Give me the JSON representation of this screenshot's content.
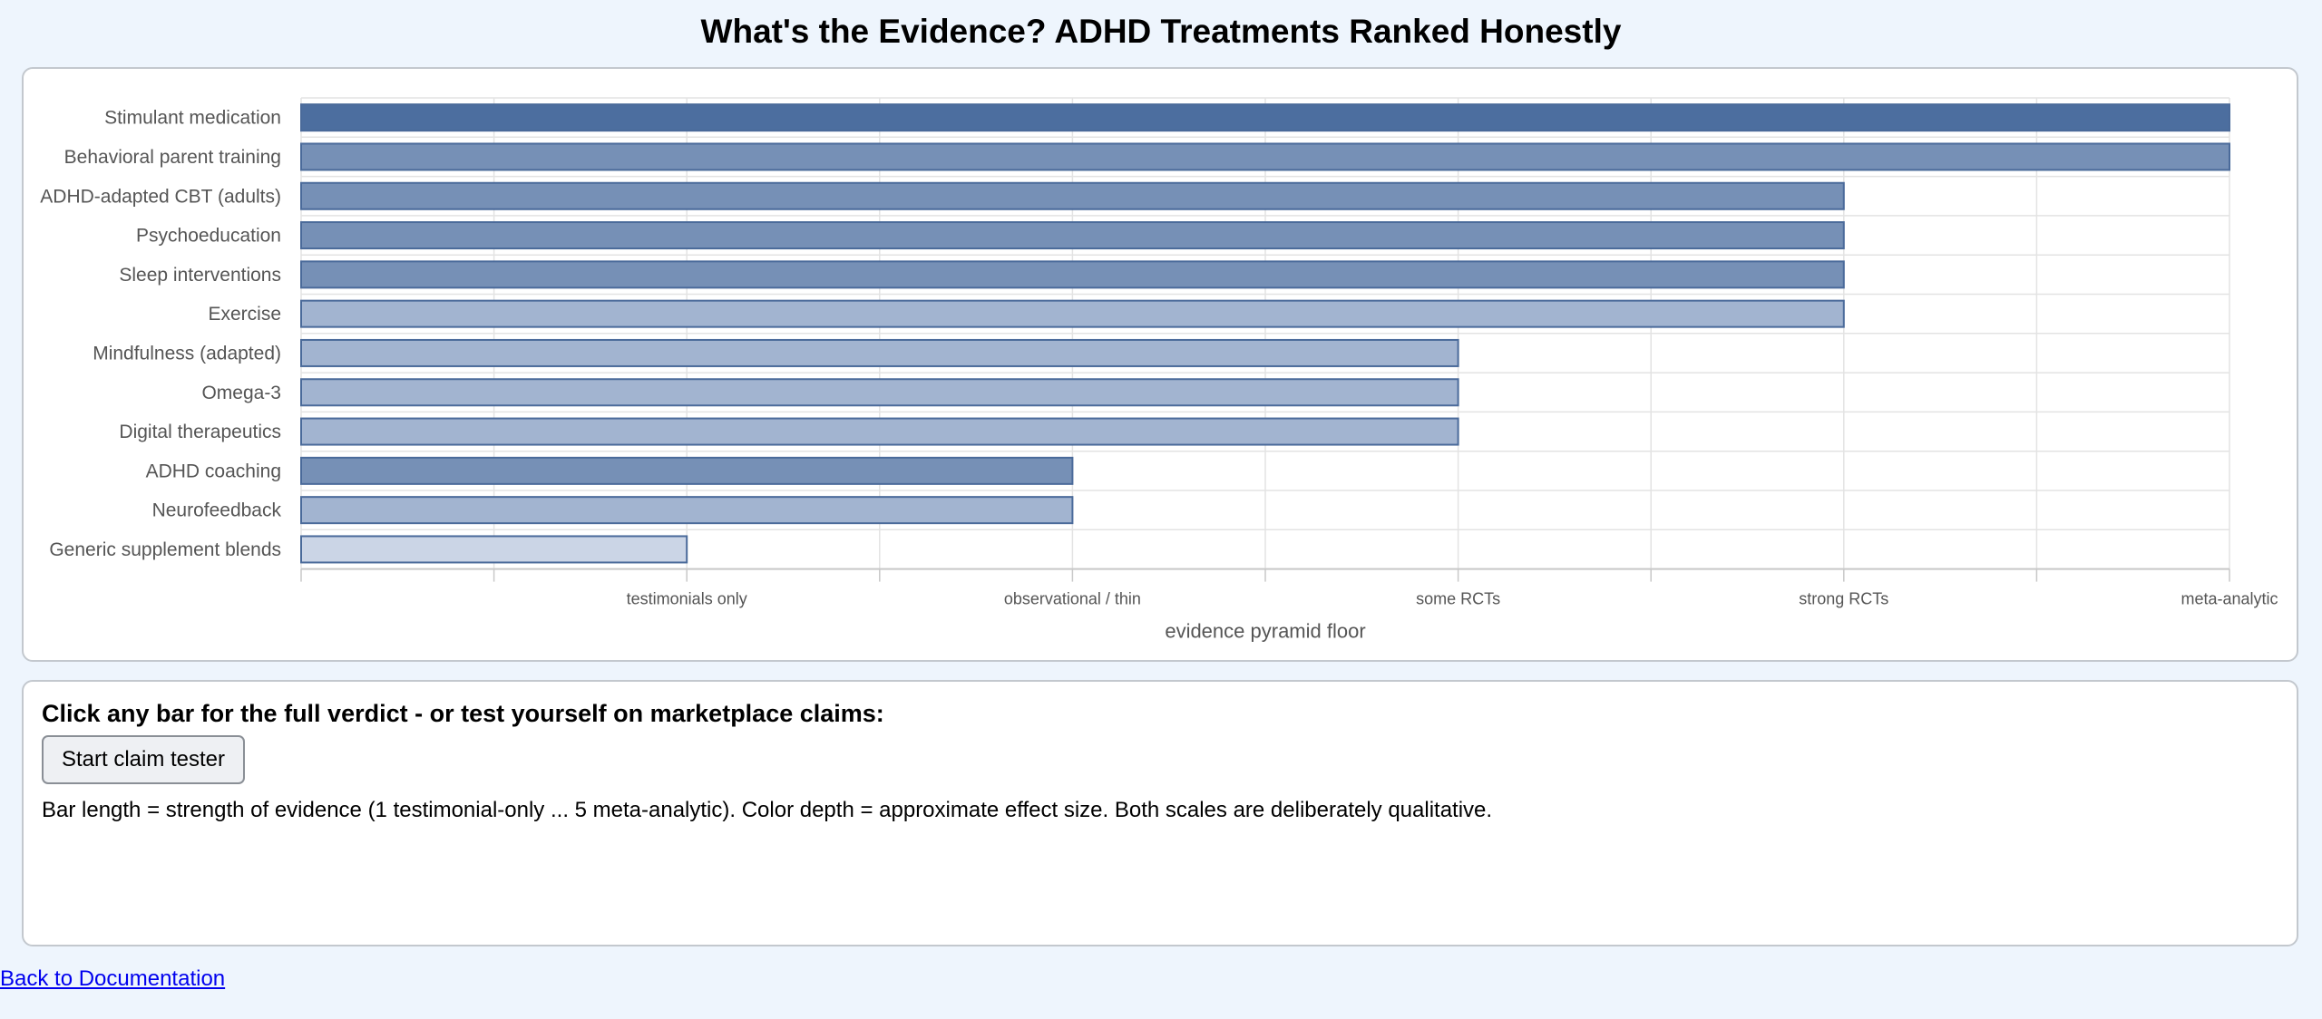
{
  "page": {
    "title": "What's the Evidence? ADHD Treatments Ranked Honestly"
  },
  "chart_data": {
    "type": "bar",
    "orientation": "horizontal",
    "title": "",
    "xlabel": "evidence pyramid floor",
    "ylabel": "",
    "xlim": [
      0,
      5
    ],
    "grid": true,
    "x_ticks": [
      {
        "value": 1,
        "label": "testimonials only"
      },
      {
        "value": 2,
        "label": "observational / thin"
      },
      {
        "value": 3,
        "label": "some RCTs"
      },
      {
        "value": 4,
        "label": "strong RCTs"
      },
      {
        "value": 5,
        "label": "meta-analytic"
      }
    ],
    "categories": [
      "Stimulant medication",
      "Behavioral parent training",
      "ADHD-adapted CBT (adults)",
      "Psychoeducation",
      "Sleep interventions",
      "Exercise",
      "Mindfulness (adapted)",
      "Omega-3",
      "Digital therapeutics",
      "ADHD coaching",
      "Neurofeedback",
      "Generic supplement blends"
    ],
    "values": [
      5,
      5,
      4,
      4,
      4,
      4,
      3,
      3,
      3,
      2,
      2,
      1
    ],
    "effect_size_level": [
      5,
      4,
      4,
      4,
      4,
      3,
      3,
      3,
      3,
      4,
      3,
      2
    ],
    "colors": {
      "5": "#4c6e9f",
      "4": "#7690b6",
      "3": "#a2b4d0",
      "2": "#cbd5e6",
      "border": "#4a6a9a"
    }
  },
  "info": {
    "heading": "Click any bar for the full verdict - or test yourself on marketplace claims:",
    "button_label": "Start claim tester",
    "note": "Bar length = strength of evidence (1 testimonial-only ... 5 meta-analytic). Color depth = approximate effect size. Both scales are deliberately qualitative."
  },
  "footer": {
    "back_link": "Back to Documentation"
  }
}
